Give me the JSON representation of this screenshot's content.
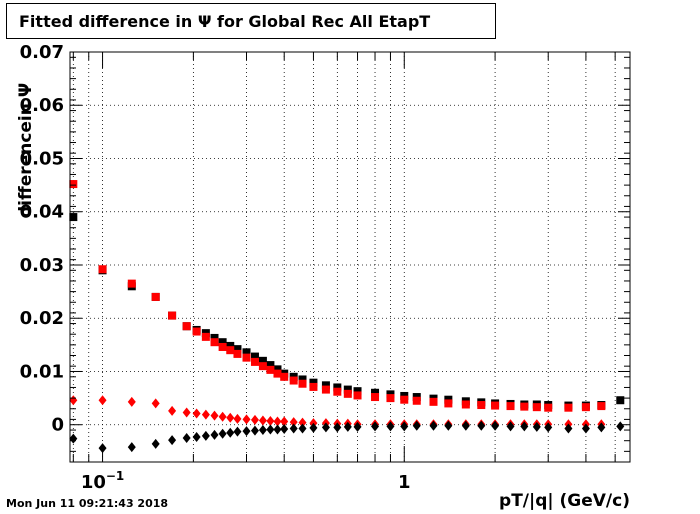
{
  "chart_data": {
    "type": "scatter",
    "title": "Fitted difference in  Ψ  for Global Rec All EtapT",
    "xlabel": "pT/|q| (GeV/c)",
    "ylabel": "differencein  Ψ",
    "xscale": "log",
    "xlim": [
      0.078,
      5.6
    ],
    "ylim": [
      -0.007,
      0.07
    ],
    "y_ticks": [
      "0",
      "0.01",
      "0.02",
      "0.03",
      "0.04",
      "0.05",
      "0.06",
      "0.07"
    ],
    "x_ticks": [
      {
        "value": 0.1,
        "label": "10",
        "sup": "−1"
      },
      {
        "value": 1,
        "label": "1",
        "sup": ""
      }
    ],
    "grid": true,
    "series": [
      {
        "color": "#000000",
        "marker": "square",
        "x": [
          0.08,
          0.1,
          0.125,
          0.15,
          0.17,
          0.19,
          0.205,
          0.22,
          0.235,
          0.25,
          0.265,
          0.28,
          0.3,
          0.32,
          0.34,
          0.36,
          0.38,
          0.4,
          0.43,
          0.46,
          0.5,
          0.55,
          0.6,
          0.65,
          0.7,
          0.8,
          0.9,
          1.0,
          1.1,
          1.25,
          1.4,
          1.6,
          1.8,
          2.0,
          2.25,
          2.5,
          2.75,
          3.0,
          3.5,
          4.0,
          4.5,
          5.2
        ],
        "y": [
          0.039,
          0.029,
          0.026,
          0.024,
          0.0205,
          0.0185,
          0.0178,
          0.0172,
          0.0163,
          0.0155,
          0.0148,
          0.0142,
          0.0136,
          0.0128,
          0.012,
          0.0112,
          0.0104,
          0.0096,
          0.009,
          0.0085,
          0.0079,
          0.0074,
          0.007,
          0.0066,
          0.0063,
          0.006,
          0.0057,
          0.0054,
          0.0052,
          0.0049,
          0.0047,
          0.0044,
          0.0042,
          0.004,
          0.0039,
          0.0038,
          0.0038,
          0.0037,
          0.0036,
          0.0036,
          0.0037,
          0.0046
        ]
      },
      {
        "color": "#ff0000",
        "marker": "square",
        "x": [
          0.08,
          0.1,
          0.125,
          0.15,
          0.17,
          0.19,
          0.205,
          0.22,
          0.235,
          0.25,
          0.265,
          0.28,
          0.3,
          0.32,
          0.34,
          0.36,
          0.38,
          0.4,
          0.43,
          0.46,
          0.5,
          0.55,
          0.6,
          0.65,
          0.7,
          0.8,
          0.9,
          1.0,
          1.1,
          1.25,
          1.4,
          1.6,
          1.8,
          2.0,
          2.25,
          2.5,
          2.75,
          3.0,
          3.5,
          4.0,
          4.5
        ],
        "y": [
          0.0452,
          0.0292,
          0.0265,
          0.024,
          0.0205,
          0.0185,
          0.0175,
          0.0165,
          0.0155,
          0.0146,
          0.014,
          0.0133,
          0.0126,
          0.0118,
          0.011,
          0.0103,
          0.0096,
          0.009,
          0.0083,
          0.0077,
          0.0071,
          0.0066,
          0.0062,
          0.0058,
          0.0055,
          0.0052,
          0.005,
          0.0047,
          0.0045,
          0.0043,
          0.004,
          0.0038,
          0.0037,
          0.0036,
          0.0035,
          0.0034,
          0.0033,
          0.0032,
          0.0032,
          0.0033,
          0.0035
        ]
      },
      {
        "color": "#ff0000",
        "marker": "diamond",
        "x": [
          0.08,
          0.1,
          0.125,
          0.15,
          0.17,
          0.19,
          0.205,
          0.22,
          0.235,
          0.25,
          0.265,
          0.28,
          0.3,
          0.32,
          0.34,
          0.36,
          0.38,
          0.4,
          0.43,
          0.46,
          0.5,
          0.55,
          0.6,
          0.65,
          0.7,
          0.8,
          0.9,
          1.0,
          1.1,
          1.25,
          1.4,
          1.6,
          1.8,
          2.0,
          2.25,
          2.5,
          2.75,
          3.0,
          3.5,
          4.0,
          4.5
        ],
        "y": [
          0.0046,
          0.0046,
          0.0043,
          0.004,
          0.0026,
          0.0023,
          0.0021,
          0.0019,
          0.0017,
          0.0015,
          0.0013,
          0.0011,
          0.001,
          0.0009,
          0.0008,
          0.0007,
          0.0006,
          0.0006,
          0.0005,
          0.0004,
          0.0003,
          0.0003,
          0.0002,
          0.0002,
          0.0001,
          0.0001,
          0.0001,
          0.0001,
          0.0001,
          0.0001,
          0.0001,
          0.0001,
          0.0001,
          0.0001,
          0.0001,
          0.0001,
          0.0001,
          0.0001,
          0.0001,
          0.0001,
          0.0001
        ]
      },
      {
        "color": "#000000",
        "marker": "diamond",
        "x": [
          0.08,
          0.1,
          0.125,
          0.15,
          0.17,
          0.19,
          0.205,
          0.22,
          0.235,
          0.25,
          0.265,
          0.28,
          0.3,
          0.32,
          0.34,
          0.36,
          0.38,
          0.4,
          0.43,
          0.46,
          0.5,
          0.55,
          0.6,
          0.65,
          0.7,
          0.8,
          0.9,
          1.0,
          1.1,
          1.25,
          1.4,
          1.6,
          1.8,
          2.0,
          2.25,
          2.5,
          2.75,
          3.0,
          3.5,
          4.0,
          4.5,
          5.2
        ],
        "y": [
          -0.0026,
          -0.0044,
          -0.0042,
          -0.0036,
          -0.0029,
          -0.0025,
          -0.0023,
          -0.0021,
          -0.0019,
          -0.0017,
          -0.0015,
          -0.0013,
          -0.0012,
          -0.0011,
          -0.001,
          -0.0009,
          -0.0009,
          -0.0008,
          -0.0007,
          -0.0007,
          -0.0006,
          -0.0005,
          -0.0005,
          -0.0004,
          -0.0004,
          -0.0003,
          -0.0003,
          -0.0003,
          -0.0002,
          -0.0002,
          -0.0002,
          -0.0002,
          -0.0002,
          -0.0002,
          -0.0003,
          -0.0003,
          -0.0004,
          -0.0005,
          -0.0007,
          -0.0007,
          -0.0005,
          -0.0003
        ]
      }
    ]
  },
  "date_stamp": "Mon Jun 11 09:21:43 2018"
}
